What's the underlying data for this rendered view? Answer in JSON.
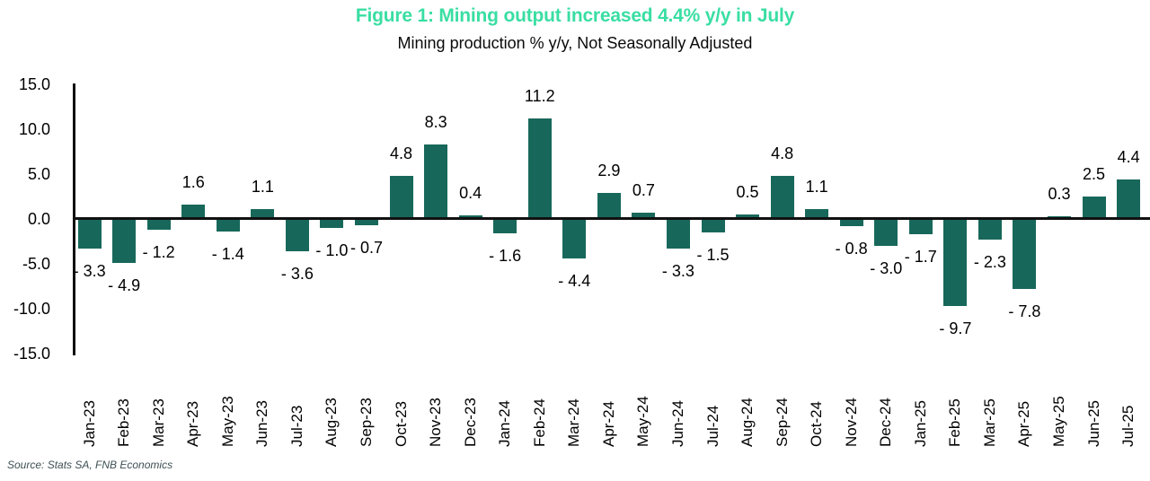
{
  "chart_data": {
    "type": "bar",
    "title": "Figure 1: Mining output increased 4.4% y/y in July",
    "subtitle": "Mining production % y/y, Not Seasonally Adjusted",
    "categories": [
      "Jan-23",
      "Feb-23",
      "Mar-23",
      "Apr-23",
      "May-23",
      "Jun-23",
      "Jul-23",
      "Aug-23",
      "Sep-23",
      "Oct-23",
      "Nov-23",
      "Dec-23",
      "Jan-24",
      "Feb-24",
      "Mar-24",
      "Apr-24",
      "May-24",
      "Jun-24",
      "Jul-24",
      "Aug-24",
      "Sep-24",
      "Oct-24",
      "Nov-24",
      "Dec-24",
      "Jan-25",
      "Feb-25",
      "Mar-25",
      "Apr-25",
      "May-25",
      "Jun-25",
      "Jul-25"
    ],
    "values": [
      -3.3,
      -4.9,
      -1.2,
      1.6,
      -1.4,
      1.1,
      -3.6,
      -1.0,
      -0.7,
      4.8,
      8.3,
      0.4,
      -1.6,
      11.2,
      -4.4,
      2.9,
      0.7,
      -3.3,
      -1.5,
      0.5,
      4.8,
      1.1,
      -0.8,
      -3.0,
      -1.7,
      -9.7,
      -2.3,
      -7.8,
      0.3,
      2.5,
      4.4
    ],
    "xlabel": "",
    "ylabel": "",
    "ylim": [
      -15,
      15
    ],
    "yticks": [
      "15.0",
      "10.0",
      "5.0",
      "0.0",
      "-5.0",
      "-10.0",
      "-15.0"
    ],
    "grid": false,
    "legend": "none",
    "data_label_decimals": 1,
    "negative_label_prefix": "- ",
    "bar_color": "#17685a",
    "title_color": "#39dea2",
    "axis_color": "#111111",
    "label_color": "#000000",
    "source_color": "#3e5054",
    "source": "Source: Stats SA, FNB Economics"
  }
}
